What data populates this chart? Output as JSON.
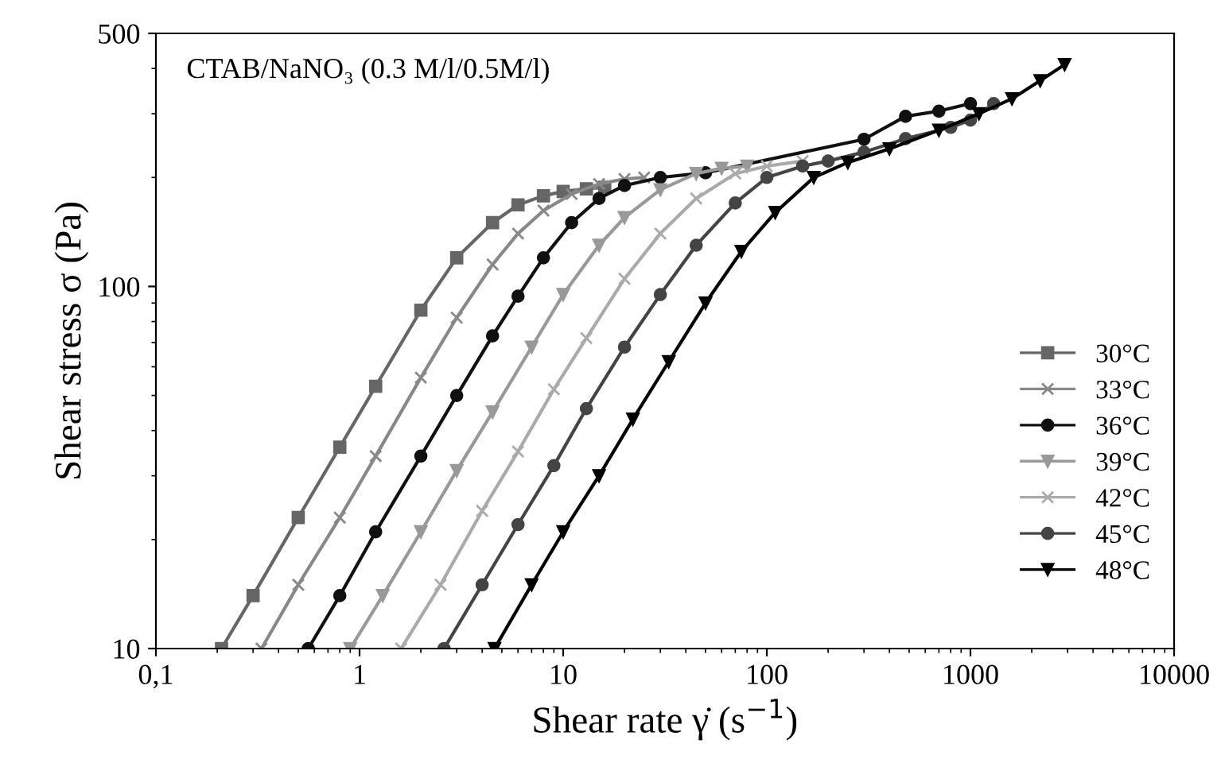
{
  "chart_data": {
    "type": "line",
    "xlabel": "Shear rate γ̇ (s$^{−1}$)",
    "ylabel": "Shear stress σ (Pa)",
    "annotations": [
      "CTAB/NaNO₃ (0.3 M/l/0.5M/l)"
    ],
    "log": "xy",
    "xlim": [
      0.1,
      10000
    ],
    "ylim": [
      10,
      500
    ],
    "xticks": [
      {
        "value": 0.1,
        "label": "0,1"
      },
      1,
      10,
      100,
      1000,
      10000
    ],
    "yticks": [
      10,
      100,
      500
    ],
    "grid": false,
    "legend": "right",
    "series": [
      {
        "name": "30°C",
        "color": "#666666",
        "marker": "square",
        "x": [
          0.21,
          0.3,
          0.5,
          0.8,
          1.2,
          2,
          3,
          4.5,
          6,
          8,
          10,
          13,
          16
        ],
        "values": [
          10,
          14,
          23,
          36,
          53,
          86,
          120,
          150,
          168,
          178,
          183,
          186,
          188
        ]
      },
      {
        "name": "33°C",
        "color": "#888888",
        "marker": "cross",
        "x": [
          0.33,
          0.5,
          0.8,
          1.2,
          2,
          3,
          4.5,
          6,
          8,
          11,
          15,
          20,
          25
        ],
        "values": [
          10,
          15,
          23,
          34,
          56,
          82,
          115,
          140,
          162,
          180,
          192,
          198,
          200
        ]
      },
      {
        "name": "36°C",
        "color": "#111111",
        "marker": "circle",
        "x": [
          0.56,
          0.8,
          1.2,
          2,
          3,
          4.5,
          6,
          8,
          11,
          15,
          20,
          30,
          50,
          300,
          480,
          700,
          1000
        ],
        "values": [
          10,
          14,
          21,
          34,
          50,
          73,
          94,
          120,
          150,
          175,
          190,
          200,
          206,
          255,
          295,
          305,
          320
        ]
      },
      {
        "name": "39°C",
        "color": "#999999",
        "marker": "triangle",
        "x": [
          0.9,
          1.3,
          2,
          3,
          4.5,
          7,
          10,
          15,
          20,
          30,
          45,
          60,
          80
        ],
        "values": [
          10,
          14,
          21,
          31,
          45,
          68,
          95,
          130,
          155,
          185,
          205,
          212,
          215
        ]
      },
      {
        "name": "42°C",
        "color": "#aaaaaa",
        "marker": "cross",
        "x": [
          1.6,
          2.5,
          4,
          6,
          9,
          13,
          20,
          30,
          45,
          70,
          100,
          150
        ],
        "values": [
          10,
          15,
          24,
          35,
          52,
          72,
          105,
          140,
          175,
          205,
          215,
          222
        ]
      },
      {
        "name": "45°C",
        "color": "#444444",
        "marker": "circle",
        "x": [
          2.6,
          4,
          6,
          9,
          13,
          20,
          30,
          45,
          70,
          100,
          150,
          200,
          300,
          480,
          800,
          1000,
          1300
        ],
        "values": [
          10,
          15,
          22,
          32,
          46,
          68,
          95,
          130,
          170,
          200,
          215,
          222,
          235,
          256,
          275,
          288,
          320
        ]
      },
      {
        "name": "48°C",
        "color": "#000000",
        "marker": "triangle",
        "x": [
          4.6,
          7,
          10,
          15,
          22,
          33,
          50,
          75,
          110,
          170,
          250,
          400,
          700,
          1100,
          1600,
          2200,
          2900
        ],
        "values": [
          10,
          15,
          21,
          30,
          43,
          62,
          90,
          125,
          160,
          200,
          220,
          240,
          270,
          300,
          330,
          370,
          410
        ]
      }
    ]
  }
}
